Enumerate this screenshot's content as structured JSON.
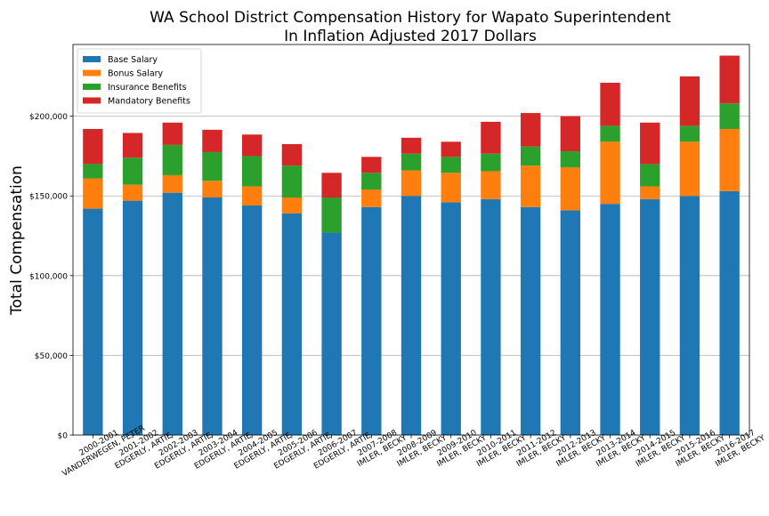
{
  "chart_data": {
    "type": "bar",
    "stacked": true,
    "title": "WA School District Compensation History for Wapato Superintendent",
    "subtitle": "In Inflation Adjusted 2017 Dollars",
    "xlabel": "",
    "ylabel": "Total Compensation",
    "ylim": [
      0,
      245000
    ],
    "yticks": [
      0,
      50000,
      100000,
      150000,
      200000
    ],
    "ytick_labels": [
      "$0",
      "$50,000",
      "$100,000",
      "$150,000",
      "$200,000"
    ],
    "grid": "horizontal",
    "legend_position": "top-left",
    "categories": [
      "2000-2001\nVANDERWEGEN, PETER",
      "2001-2002\nEDGERLY, ARTIE",
      "2002-2003\nEDGERLY, ARTIE",
      "2003-2004\nEDGERLY, ARTIE",
      "2004-2005\nEDGERLY, ARTIE",
      "2005-2006\nEDGERLY, ARTIE",
      "2006-2007\nEDGERLY, ARTIE",
      "2007-2008\nIMLER, BECKY",
      "2008-2009\nIMLER, BECKY",
      "2009-2010\nIMLER, BECKY",
      "2010-2011\nIMLER, BECKY",
      "2011-2012\nIMLER, BECKY",
      "2012-2013\nIMLER, BECKY",
      "2013-2014\nIMLER, BECKY",
      "2014-2015\nIMLER, BECKY",
      "2015-2016\nIMLER, BECKY",
      "2016-2017\nIMLER, BECKY"
    ],
    "series": [
      {
        "name": "Base Salary",
        "color": "#1f77b4",
        "values": [
          142000,
          147000,
          152000,
          149000,
          144000,
          139000,
          127000,
          143000,
          150000,
          146000,
          148000,
          143000,
          141000,
          145000,
          148000,
          150000,
          153000
        ]
      },
      {
        "name": "Bonus Salary",
        "color": "#ff7f0e",
        "values": [
          19000,
          10000,
          11000,
          10500,
          12000,
          10000,
          0,
          11000,
          16000,
          18500,
          17500,
          26000,
          27000,
          39000,
          8000,
          34000,
          39000
        ]
      },
      {
        "name": "Insurance Benefits",
        "color": "#2ca02c",
        "values": [
          9000,
          17000,
          19000,
          18000,
          19000,
          20000,
          22000,
          10500,
          10500,
          10000,
          11000,
          12000,
          10000,
          10000,
          14000,
          10000,
          16000
        ]
      },
      {
        "name": "Mandatory Benefits",
        "color": "#d62728",
        "values": [
          22000,
          15500,
          14000,
          14000,
          13500,
          13500,
          15500,
          10000,
          10000,
          9500,
          20000,
          21000,
          22000,
          27000,
          26000,
          31000,
          30000
        ]
      }
    ]
  }
}
